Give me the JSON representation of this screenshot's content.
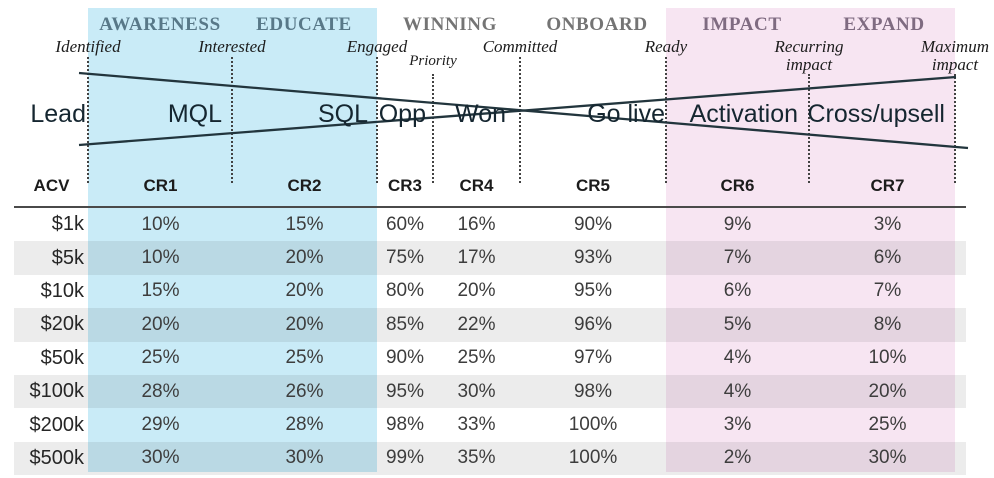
{
  "funnel": {
    "phases": [
      "AWARENESS",
      "EDUCATE",
      "WINNING",
      "ONBOARD",
      "IMPACT",
      "EXPAND"
    ],
    "checkpoints": [
      "Identified",
      "Interested",
      "Engaged",
      "Priority",
      "Committed",
      "Ready",
      "Recurring impact",
      "Maximum impact"
    ],
    "stages": [
      "Lead",
      "MQL",
      "SQL",
      "Opp",
      "Won",
      "Go live",
      "Activation",
      "Cross/upsell"
    ]
  },
  "table": {
    "columns": [
      "ACV",
      "CR1",
      "CR2",
      "CR3",
      "CR4",
      "CR5",
      "CR6",
      "CR7"
    ],
    "rows": [
      {
        "acv": "$1k",
        "values": [
          "10%",
          "15%",
          "60%",
          "16%",
          "90%",
          "9%",
          "3%"
        ]
      },
      {
        "acv": "$5k",
        "values": [
          "10%",
          "20%",
          "75%",
          "17%",
          "93%",
          "7%",
          "6%"
        ]
      },
      {
        "acv": "$10k",
        "values": [
          "15%",
          "20%",
          "80%",
          "20%",
          "95%",
          "6%",
          "7%"
        ]
      },
      {
        "acv": "$20k",
        "values": [
          "20%",
          "20%",
          "85%",
          "22%",
          "96%",
          "5%",
          "8%"
        ]
      },
      {
        "acv": "$50k",
        "values": [
          "25%",
          "25%",
          "90%",
          "25%",
          "97%",
          "4%",
          "10%"
        ]
      },
      {
        "acv": "$100k",
        "values": [
          "28%",
          "26%",
          "95%",
          "30%",
          "98%",
          "4%",
          "20%"
        ]
      },
      {
        "acv": "$200k",
        "values": [
          "29%",
          "28%",
          "98%",
          "33%",
          "100%",
          "3%",
          "25%"
        ]
      },
      {
        "acv": "$500k",
        "values": [
          "30%",
          "30%",
          "99%",
          "35%",
          "100%",
          "2%",
          "30%"
        ]
      }
    ]
  },
  "colors": {
    "awareness_educate_band": "#c9ebf7",
    "impact_expand_band": "#f7e5f2",
    "phase_label_blue": "#587888",
    "phase_label_gray": "#747474",
    "phase_label_purple": "#7f6b81",
    "funnel_line": "#22353d",
    "row_stripe": "#ececec"
  }
}
